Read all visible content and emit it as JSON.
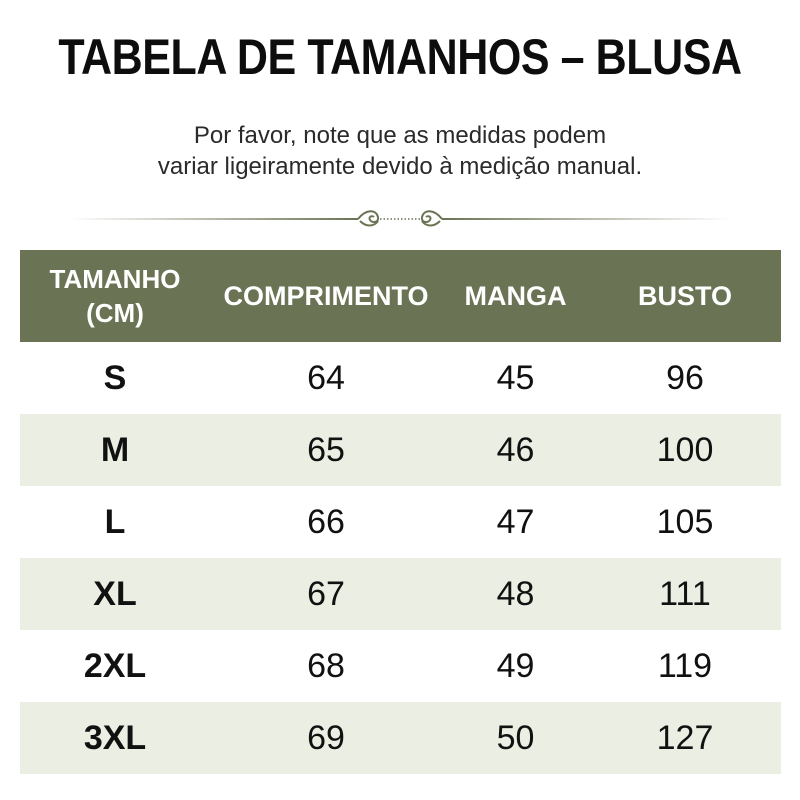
{
  "header": {
    "title": "TABELA DE TAMANHOS – BLUSA",
    "subtitle_line1": "Por favor, note que as medidas podem",
    "subtitle_line2": "variar ligeiramente devido à medição manual."
  },
  "colors": {
    "header_background": "#6a7454",
    "alt_row_background": "#ebeee2",
    "divider": "#6a7454"
  },
  "table": {
    "columns": {
      "size_line1": "TAMANHO",
      "size_line2": "(CM)",
      "length": "COMPRIMENTO",
      "sleeve": "MANGA",
      "bust": "BUSTO"
    },
    "rows": [
      {
        "size": "S",
        "length": "64",
        "sleeve": "45",
        "bust": "96"
      },
      {
        "size": "M",
        "length": "65",
        "sleeve": "46",
        "bust": "100"
      },
      {
        "size": "L",
        "length": "66",
        "sleeve": "47",
        "bust": "105"
      },
      {
        "size": "XL",
        "length": "67",
        "sleeve": "48",
        "bust": "111"
      },
      {
        "size": "2XL",
        "length": "68",
        "sleeve": "49",
        "bust": "119"
      },
      {
        "size": "3XL",
        "length": "69",
        "sleeve": "50",
        "bust": "127"
      }
    ]
  }
}
